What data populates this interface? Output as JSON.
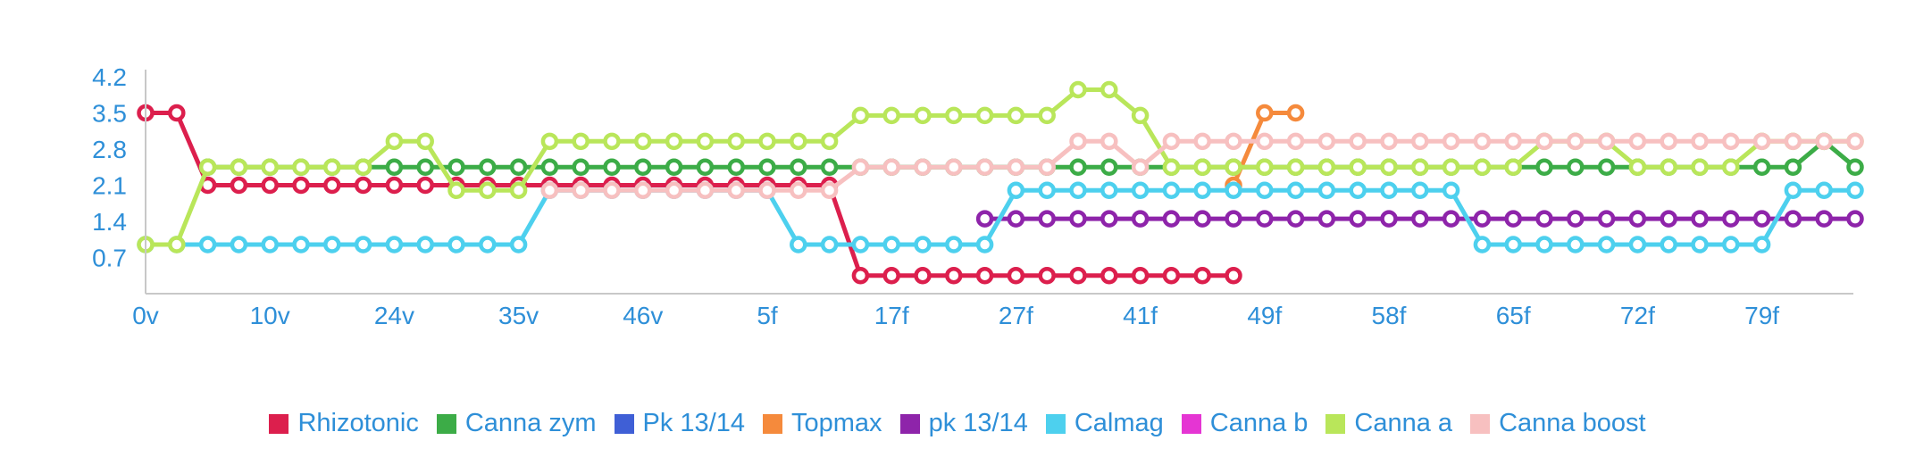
{
  "chart_data": {
    "type": "line",
    "title": "",
    "xlabel": "",
    "ylabel": "",
    "ylim": [
      0,
      4.2
    ],
    "x_ticks": [
      "0v",
      "10v",
      "24v",
      "35v",
      "46v",
      "5f",
      "17f",
      "27f",
      "41f",
      "49f",
      "58f",
      "65f",
      "72f",
      "79f"
    ],
    "y_ticks": [
      0.7,
      1.4,
      2.1,
      2.8,
      3.5,
      4.2
    ],
    "x_count": 56,
    "legend_position": "bottom",
    "grid": false,
    "series": [
      {
        "name": "Rhizotonic",
        "color": "#dc1f4d",
        "marker": false,
        "values": [
          3.5,
          3.5,
          2.1,
          2.1,
          2.1,
          2.1,
          2.1,
          2.1,
          2.1,
          2.1,
          2.1,
          2.1,
          2.1,
          2.1,
          2.1,
          2.1,
          2.1,
          2.1,
          2.1,
          2.1,
          2.1,
          2.1,
          2.1,
          0.35,
          0.35,
          0.35,
          0.35,
          0.35,
          0.35,
          0.35,
          0.35,
          0.35,
          0.35,
          0.35,
          0.35,
          0.35,
          null,
          null,
          null,
          null,
          null,
          null,
          null,
          null,
          null,
          null,
          null,
          null,
          null,
          null,
          null,
          null,
          null,
          null,
          null,
          null
        ]
      },
      {
        "name": "Canna zym",
        "color": "#3cac47",
        "marker": false,
        "values": [
          null,
          null,
          2.45,
          2.45,
          2.45,
          2.45,
          2.45,
          2.45,
          2.45,
          2.45,
          2.45,
          2.45,
          2.45,
          2.45,
          2.45,
          2.45,
          2.45,
          2.45,
          2.45,
          2.45,
          2.45,
          2.45,
          2.45,
          2.45,
          2.45,
          2.45,
          2.45,
          2.45,
          2.45,
          2.45,
          2.45,
          2.45,
          2.45,
          2.45,
          2.45,
          2.45,
          2.45,
          2.45,
          2.45,
          2.45,
          2.45,
          2.45,
          2.45,
          2.45,
          2.45,
          2.45,
          2.45,
          2.45,
          2.45,
          2.45,
          2.45,
          2.45,
          2.45,
          2.45,
          2.95,
          2.45
        ]
      },
      {
        "name": "Pk 13/14",
        "color": "#3f5fd6",
        "marker": false,
        "values": [
          null,
          null,
          null,
          null,
          null,
          null,
          null,
          null,
          null,
          null,
          null,
          null,
          null,
          null,
          null,
          null,
          null,
          null,
          null,
          null,
          null,
          null,
          null,
          null,
          null,
          null,
          null,
          null,
          null,
          null,
          null,
          null,
          null,
          null,
          null,
          null,
          null,
          null,
          null,
          null,
          null,
          null,
          null,
          null,
          null,
          null,
          null,
          null,
          null,
          null,
          null,
          null,
          null,
          null,
          null,
          null
        ]
      },
      {
        "name": "Topmax",
        "color": "#f58a3c",
        "marker": false,
        "values": [
          null,
          null,
          null,
          null,
          null,
          null,
          null,
          null,
          null,
          null,
          null,
          null,
          null,
          null,
          null,
          null,
          null,
          null,
          null,
          null,
          null,
          null,
          null,
          null,
          null,
          null,
          null,
          null,
          null,
          null,
          null,
          null,
          null,
          null,
          null,
          2.1,
          3.5,
          3.5,
          null,
          null,
          null,
          null,
          null,
          null,
          null,
          null,
          null,
          null,
          null,
          null,
          null,
          null,
          null,
          null,
          null,
          null
        ]
      },
      {
        "name": "pk 13/14",
        "color": "#8e24aa",
        "marker": false,
        "values": [
          null,
          null,
          null,
          null,
          null,
          null,
          null,
          null,
          null,
          null,
          null,
          null,
          null,
          null,
          null,
          null,
          null,
          null,
          null,
          null,
          null,
          null,
          null,
          null,
          null,
          null,
          null,
          1.45,
          1.45,
          1.45,
          1.45,
          1.45,
          1.45,
          1.45,
          1.45,
          1.45,
          1.45,
          1.45,
          1.45,
          1.45,
          1.45,
          1.45,
          1.45,
          1.45,
          1.45,
          1.45,
          1.45,
          1.45,
          1.45,
          1.45,
          1.45,
          1.45,
          1.45,
          1.45,
          1.45,
          1.45
        ]
      },
      {
        "name": "Calmag",
        "color": "#4dd0ee",
        "marker": false,
        "values": [
          0.95,
          0.95,
          0.95,
          0.95,
          0.95,
          0.95,
          0.95,
          0.95,
          0.95,
          0.95,
          0.95,
          0.95,
          0.95,
          2.0,
          2.0,
          2.0,
          2.0,
          2.0,
          2.0,
          2.0,
          2.0,
          0.95,
          0.95,
          0.95,
          0.95,
          0.95,
          0.95,
          0.95,
          2.0,
          2.0,
          2.0,
          2.0,
          2.0,
          2.0,
          2.0,
          2.0,
          2.0,
          2.0,
          2.0,
          2.0,
          2.0,
          2.0,
          2.0,
          0.95,
          0.95,
          0.95,
          0.95,
          0.95,
          0.95,
          0.95,
          0.95,
          0.95,
          0.95,
          2.0,
          2.0,
          2.0
        ]
      },
      {
        "name": "Canna b",
        "color": "#e535d3",
        "marker": false,
        "values": [
          null,
          null,
          null,
          null,
          null,
          null,
          null,
          null,
          null,
          null,
          null,
          null,
          null,
          null,
          null,
          null,
          null,
          null,
          null,
          null,
          null,
          null,
          null,
          null,
          null,
          null,
          null,
          null,
          null,
          null,
          null,
          null,
          null,
          null,
          null,
          null,
          null,
          null,
          null,
          null,
          null,
          null,
          null,
          null,
          null,
          null,
          null,
          null,
          null,
          null,
          null,
          null,
          null,
          null,
          null,
          null
        ]
      },
      {
        "name": "Canna a",
        "color": "#b9e65a",
        "marker": false,
        "values": [
          0.95,
          0.95,
          2.45,
          2.45,
          2.45,
          2.45,
          2.45,
          2.45,
          2.95,
          2.95,
          2.0,
          2.0,
          2.0,
          2.95,
          2.95,
          2.95,
          2.95,
          2.95,
          2.95,
          2.95,
          2.95,
          2.95,
          2.95,
          3.45,
          3.45,
          3.45,
          3.45,
          3.45,
          3.45,
          3.45,
          3.95,
          3.95,
          3.45,
          2.45,
          2.45,
          2.45,
          2.45,
          2.45,
          2.45,
          2.45,
          2.45,
          2.45,
          2.45,
          2.45,
          2.45,
          2.95,
          2.95,
          2.95,
          2.45,
          2.45,
          2.45,
          2.45,
          2.95,
          2.95,
          2.95,
          2.95
        ]
      },
      {
        "name": "Canna boost",
        "color": "#f7c0c0",
        "marker": false,
        "values": [
          null,
          null,
          null,
          null,
          null,
          null,
          null,
          null,
          null,
          null,
          null,
          null,
          null,
          2.0,
          2.0,
          2.0,
          2.0,
          2.0,
          2.0,
          2.0,
          2.0,
          2.0,
          2.0,
          2.45,
          2.45,
          2.45,
          2.45,
          2.45,
          2.45,
          2.45,
          2.95,
          2.95,
          2.45,
          2.95,
          2.95,
          2.95,
          2.95,
          2.95,
          2.95,
          2.95,
          2.95,
          2.95,
          2.95,
          2.95,
          2.95,
          2.95,
          2.95,
          2.95,
          2.95,
          2.95,
          2.95,
          2.95,
          2.95,
          2.95,
          2.95,
          2.95
        ]
      }
    ]
  }
}
